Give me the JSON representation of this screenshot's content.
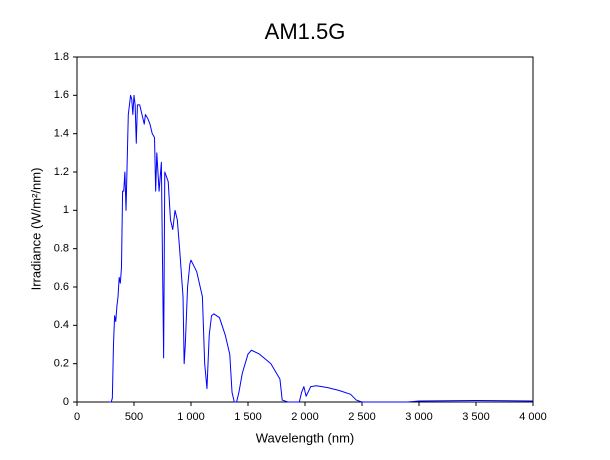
{
  "chart_data": {
    "type": "line",
    "title": "AM1.5G",
    "xlabel": "Wavelength (nm)",
    "ylabel": "Irradiance (W/m²/nm)",
    "color": "#0000ff",
    "x": [
      280,
      300,
      310,
      320,
      330,
      340,
      350,
      360,
      370,
      380,
      390,
      400,
      410,
      420,
      430,
      440,
      450,
      460,
      470,
      480,
      490,
      500,
      510,
      520,
      530,
      550,
      570,
      590,
      600,
      620,
      640,
      660,
      680,
      690,
      700,
      720,
      740,
      760,
      770,
      800,
      820,
      840,
      860,
      880,
      900,
      930,
      940,
      950,
      970,
      990,
      1000,
      1050,
      1100,
      1120,
      1140,
      1160,
      1180,
      1200,
      1250,
      1300,
      1340,
      1360,
      1380,
      1400,
      1420,
      1450,
      1500,
      1530,
      1600,
      1700,
      1780,
      1800,
      1850,
      1950,
      1970,
      1990,
      2010,
      2050,
      2100,
      2200,
      2300,
      2400,
      2450,
      2500,
      2900,
      3000,
      3500,
      4000
    ],
    "values": [
      0,
      0,
      0.02,
      0.3,
      0.45,
      0.42,
      0.5,
      0.55,
      0.65,
      0.62,
      0.7,
      1.1,
      1.1,
      1.2,
      1.0,
      1.25,
      1.5,
      1.55,
      1.6,
      1.58,
      1.5,
      1.6,
      1.55,
      1.35,
      1.55,
      1.55,
      1.5,
      1.45,
      1.5,
      1.48,
      1.45,
      1.4,
      1.38,
      1.1,
      1.3,
      1.1,
      1.25,
      0.23,
      1.2,
      1.15,
      0.95,
      0.9,
      1.0,
      0.95,
      0.8,
      0.55,
      0.2,
      0.3,
      0.6,
      0.72,
      0.74,
      0.68,
      0.55,
      0.2,
      0.07,
      0.35,
      0.45,
      0.46,
      0.44,
      0.35,
      0.25,
      0.05,
      0,
      0,
      0.05,
      0.15,
      0.25,
      0.27,
      0.25,
      0.2,
      0.12,
      0.01,
      0,
      0,
      0.05,
      0.08,
      0.03,
      0.08,
      0.085,
      0.075,
      0.06,
      0.04,
      0.01,
      0,
      0,
      0.005,
      0.008,
      0.005
    ],
    "xlim": [
      0,
      4000
    ],
    "xticks": [
      0,
      500,
      {
        "value": 1000,
        "label": "1 000"
      },
      {
        "value": 1500,
        "label": "1 500"
      },
      {
        "value": 2000,
        "label": "2 000"
      },
      {
        "value": 2500,
        "label": "2 500"
      },
      {
        "value": 3000,
        "label": "3 000"
      },
      {
        "value": 3500,
        "label": "3 500"
      },
      {
        "value": 4000,
        "label": "4 000"
      }
    ],
    "ylim": [
      0,
      1.8
    ],
    "yticks": [
      0,
      0.2,
      0.4,
      0.6,
      0.8,
      1,
      1.2,
      1.4,
      1.6,
      1.8
    ],
    "grid": false
  }
}
